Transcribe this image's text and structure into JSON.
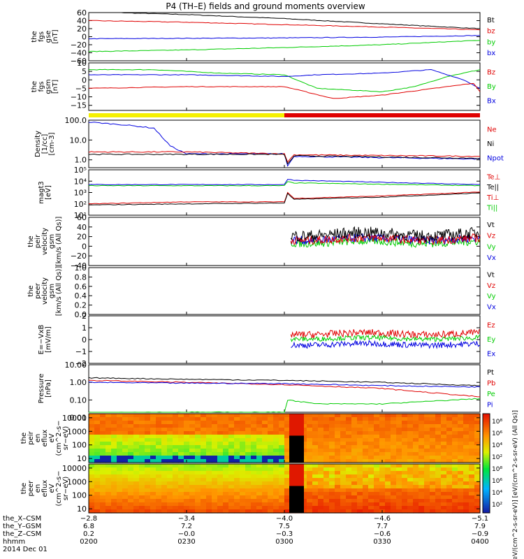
{
  "title": "P4 (TH–E) fields and ground moments overview",
  "colors": {
    "black": "#000000",
    "red": "#e00000",
    "green": "#00cc00",
    "blue": "#0000e0"
  },
  "time_axis": {
    "range": [
      0,
      120
    ],
    "ticks": [
      0,
      30,
      60,
      90,
      120
    ],
    "row_labels": [
      "the_X–CSM",
      "the_Y–GSM",
      "the_Z–CSM",
      "hhmm",
      "2014 Dec 01"
    ],
    "rows": [
      [
        "−2.8",
        "−3.4",
        "−4.0",
        "−4.6",
        "−5.1"
      ],
      [
        "6.8",
        "7.2",
        "7.5",
        "7.7",
        "7.9"
      ],
      [
        "0.2",
        "−0.0",
        "−0.3",
        "−0.6",
        "−0.9"
      ],
      [
        "0200",
        "0230",
        "0300",
        "0330",
        "0400"
      ]
    ]
  },
  "bar": {
    "yellow_until": 60
  },
  "panels": [
    {
      "id": "fgs-gse",
      "ylabel": [
        "the",
        "fgs",
        "gse",
        "[nT]"
      ],
      "scale": "lin",
      "ylim": [
        -60,
        60
      ],
      "ticks": [
        "60",
        "40",
        "20",
        "0",
        "−20",
        "−40",
        "−60"
      ],
      "tickvals": [
        60,
        40,
        20,
        0,
        -20,
        -40,
        -60
      ],
      "legend": [
        {
          "t": "Bt",
          "c": "black"
        },
        {
          "t": "bz",
          "c": "red"
        },
        {
          "t": "by",
          "c": "green"
        },
        {
          "t": "bx",
          "c": "blue"
        }
      ],
      "series": [
        {
          "c": "black",
          "pts": [
            [
              0,
              62
            ],
            [
              30,
              55
            ],
            [
              60,
              45
            ],
            [
              90,
              32
            ],
            [
              120,
              20
            ]
          ]
        },
        {
          "c": "red",
          "pts": [
            [
              0,
              40
            ],
            [
              30,
              36
            ],
            [
              60,
              30
            ],
            [
              90,
              24
            ],
            [
              120,
              17
            ]
          ]
        },
        {
          "c": "blue",
          "pts": [
            [
              0,
              -5
            ],
            [
              30,
              -4
            ],
            [
              60,
              -3
            ],
            [
              90,
              -1
            ],
            [
              120,
              3
            ]
          ]
        },
        {
          "c": "green",
          "pts": [
            [
              0,
              -37
            ],
            [
              30,
              -33
            ],
            [
              60,
              -27
            ],
            [
              90,
              -20
            ],
            [
              120,
              -9
            ]
          ]
        }
      ]
    },
    {
      "id": "fgs-gsm",
      "ylabel": [
        "the",
        "fgs",
        "gsm",
        "[nT]"
      ],
      "scale": "lin",
      "ylim": [
        -18,
        10
      ],
      "ticks": [
        "10",
        "5",
        "0",
        "−5",
        "−10",
        "−15"
      ],
      "tickvals": [
        10,
        5,
        0,
        -5,
        -10,
        -15
      ],
      "legend": [
        {
          "t": "Bz",
          "c": "red"
        },
        {
          "t": "By",
          "c": "green"
        },
        {
          "t": "Bx",
          "c": "blue"
        }
      ],
      "series": [
        {
          "c": "green",
          "pts": [
            [
              0,
              6
            ],
            [
              20,
              6
            ],
            [
              40,
              4
            ],
            [
              60,
              3
            ],
            [
              70,
              -5
            ],
            [
              80,
              -6
            ],
            [
              90,
              -7
            ],
            [
              100,
              -4
            ],
            [
              110,
              2
            ],
            [
              120,
              6
            ]
          ]
        },
        {
          "c": "blue",
          "pts": [
            [
              0,
              3
            ],
            [
              30,
              3
            ],
            [
              60,
              2
            ],
            [
              70,
              3
            ],
            [
              90,
              4
            ],
            [
              105,
              6
            ],
            [
              115,
              0
            ],
            [
              120,
              -5
            ]
          ]
        },
        {
          "c": "red",
          "pts": [
            [
              0,
              -5
            ],
            [
              30,
              -4
            ],
            [
              60,
              -4
            ],
            [
              75,
              -11
            ],
            [
              90,
              -9
            ],
            [
              110,
              -4
            ],
            [
              118,
              -2
            ],
            [
              120,
              -7
            ]
          ]
        }
      ]
    },
    {
      "id": "density",
      "ylabel": [
        "Density",
        "[1/cc]",
        "[cm-3]"
      ],
      "scale": "log",
      "ylim": [
        0.4,
        100
      ],
      "ticks": [
        "100.0",
        "10.0",
        "1.0"
      ],
      "tickvals": [
        100,
        10,
        1
      ],
      "legend": [
        {
          "t": "Ne",
          "c": "red"
        },
        {
          "t": "Ni",
          "c": "black"
        },
        {
          "t": "Npot",
          "c": "blue"
        }
      ],
      "series": [
        {
          "c": "blue",
          "pts": [
            [
              0,
              80
            ],
            [
              10,
              60
            ],
            [
              20,
              40
            ],
            [
              25,
              5
            ],
            [
              30,
              2
            ],
            [
              60,
              2
            ],
            [
              61,
              0.5
            ],
            [
              63,
              1.5
            ],
            [
              120,
              1.1
            ]
          ]
        },
        {
          "c": "red",
          "pts": [
            [
              0,
              2.5
            ],
            [
              30,
              2.5
            ],
            [
              60,
              2
            ],
            [
              61,
              0.8
            ],
            [
              63,
              1.8
            ],
            [
              120,
              1.5
            ]
          ]
        },
        {
          "c": "black",
          "pts": [
            [
              0,
              1.9
            ],
            [
              30,
              1.9
            ],
            [
              60,
              1.9
            ],
            [
              61,
              0.6
            ],
            [
              63,
              1.6
            ],
            [
              120,
              1.2
            ]
          ]
        }
      ]
    },
    {
      "id": "temperature",
      "ylabel": [
        "magt3",
        "[eV]"
      ],
      "scale": "log",
      "ylim": [
        10,
        100000
      ],
      "ticks": [
        "10⁵",
        "10⁴",
        "10³",
        "10²",
        "10¹"
      ],
      "tickvals": [
        100000,
        10000,
        1000,
        100,
        10
      ],
      "legend": [
        {
          "t": "Te⊥",
          "c": "red"
        },
        {
          "t": "Te||",
          "c": "black"
        },
        {
          "t": "Ti⊥",
          "c": "red"
        },
        {
          "t": "Ti||",
          "c": "green"
        }
      ],
      "series": [
        {
          "c": "blue",
          "pts": [
            [
              0,
              5000
            ],
            [
              60,
              5000
            ],
            [
              61,
              15000
            ],
            [
              63,
              12000
            ],
            [
              120,
              5000
            ]
          ]
        },
        {
          "c": "green",
          "pts": [
            [
              0,
              4000
            ],
            [
              60,
              4000
            ],
            [
              61,
              9000
            ],
            [
              63,
              7000
            ],
            [
              120,
              4000
            ]
          ]
        },
        {
          "c": "red",
          "pts": [
            [
              0,
              100
            ],
            [
              30,
              150
            ],
            [
              60,
              150
            ],
            [
              61,
              1000
            ],
            [
              63,
              300
            ],
            [
              90,
              500
            ],
            [
              120,
              1100
            ]
          ]
        },
        {
          "c": "black",
          "pts": [
            [
              0,
              80
            ],
            [
              30,
              100
            ],
            [
              60,
              120
            ],
            [
              61,
              800
            ],
            [
              63,
              250
            ],
            [
              90,
              400
            ],
            [
              120,
              900
            ]
          ]
        }
      ]
    },
    {
      "id": "peir-vel",
      "ylabel": [
        "the",
        "peir",
        "velocity",
        "gsm",
        "[km/s (All Qs)]"
      ],
      "scale": "lin",
      "ylim": [
        -40,
        60
      ],
      "ticks": [
        "60",
        "40",
        "20",
        "0",
        "−20",
        "−40"
      ],
      "tickvals": [
        60,
        40,
        20,
        0,
        -20,
        -40
      ],
      "legend": [
        {
          "t": "Vt",
          "c": "black"
        },
        {
          "t": "Vz",
          "c": "red"
        },
        {
          "t": "Vy",
          "c": "green"
        },
        {
          "t": "Vx",
          "c": "blue"
        }
      ],
      "noisy": [
        {
          "c": "green",
          "base": 8,
          "amp": 8
        },
        {
          "c": "blue",
          "base": 15,
          "amp": 9
        },
        {
          "c": "red",
          "base": 15,
          "amp": 9
        },
        {
          "c": "black",
          "base": 25,
          "amp": 12
        }
      ],
      "noisy_from": 62
    },
    {
      "id": "peer-vel",
      "ylabel": [
        "the",
        "peer",
        "velocity",
        "gsm",
        "[km/s (All Qs)]"
      ],
      "scale": "lin",
      "ylim": [
        0,
        1
      ],
      "ticks": [
        "1.0",
        "0.8",
        "0.6",
        "0.4",
        "0.2",
        "0.0"
      ],
      "tickvals": [
        1,
        0.8,
        0.6,
        0.4,
        0.2,
        0
      ],
      "legend": [
        {
          "t": "Vt",
          "c": "black"
        },
        {
          "t": "Vz",
          "c": "red"
        },
        {
          "t": "Vy",
          "c": "green"
        },
        {
          "t": "Vx",
          "c": "blue"
        }
      ]
    },
    {
      "id": "efield",
      "ylabel": [
        "E=−VxB",
        "[mV/m]"
      ],
      "scale": "lin",
      "ylim": [
        -2,
        2
      ],
      "ticks": [
        "2",
        "1",
        "0",
        "−1",
        "−2"
      ],
      "tickvals": [
        2,
        1,
        0,
        -1,
        -2
      ],
      "legend": [
        {
          "t": "Ez",
          "c": "red"
        },
        {
          "t": "Ey",
          "c": "green"
        },
        {
          "t": "Ex",
          "c": "blue"
        }
      ],
      "noisy": [
        {
          "c": "blue",
          "base": -0.4,
          "amp": 0.25
        },
        {
          "c": "green",
          "base": 0.1,
          "amp": 0.2
        },
        {
          "c": "red",
          "base": 0.5,
          "amp": 0.3
        }
      ],
      "noisy_from": 62
    },
    {
      "id": "pressure",
      "ylabel": [
        "Pressure",
        "[nPa]"
      ],
      "scale": "log",
      "ylim": [
        0.02,
        10
      ],
      "ticks": [
        "10.00",
        "1.00",
        "0.10",
        "0.01"
      ],
      "tickvals": [
        10,
        1,
        0.1,
        0.01
      ],
      "legend": [
        {
          "t": "Pt",
          "c": "black"
        },
        {
          "t": "Pb",
          "c": "red"
        },
        {
          "t": "Pe",
          "c": "green"
        },
        {
          "t": "Pi",
          "c": "blue"
        }
      ],
      "series": [
        {
          "c": "black",
          "pts": [
            [
              0,
              1.8
            ],
            [
              30,
              1.5
            ],
            [
              60,
              1.3
            ],
            [
              90,
              1.0
            ],
            [
              120,
              0.65
            ]
          ]
        },
        {
          "c": "red",
          "pts": [
            [
              0,
              1.3
            ],
            [
              30,
              1.0
            ],
            [
              60,
              0.75
            ],
            [
              90,
              0.45
            ],
            [
              120,
              0.15
            ]
          ]
        },
        {
          "c": "blue",
          "pts": [
            [
              0,
              1.0
            ],
            [
              30,
              0.9
            ],
            [
              60,
              0.85
            ],
            [
              90,
              0.65
            ],
            [
              120,
              0.55
            ]
          ]
        },
        {
          "c": "green",
          "pts": [
            [
              0,
              0.02
            ],
            [
              60,
              0.02
            ],
            [
              61,
              0.1
            ],
            [
              70,
              0.06
            ],
            [
              90,
              0.06
            ],
            [
              120,
              0.12
            ]
          ]
        }
      ]
    },
    {
      "id": "peir-en",
      "ylabel": [
        "the",
        "peir",
        "en",
        "eflux",
        "eV",
        "(cm^2-s−",
        "sr−eV)"
      ],
      "scale": "log",
      "ylim": [
        5,
        20000
      ],
      "ticks": [
        "10000",
        "1000",
        "100",
        "10"
      ],
      "tickvals": [
        10000,
        1000,
        100,
        10
      ],
      "spec": "ion"
    },
    {
      "id": "peer-en",
      "ylabel": [
        "the",
        "peer",
        "en",
        "eflux",
        "eV",
        "(cm^2-s−",
        "sr−eV)"
      ],
      "scale": "log",
      "ylim": [
        5,
        20000
      ],
      "ticks": [
        "10000",
        "1000",
        "100",
        "10"
      ],
      "tickvals": [
        10000,
        1000,
        100,
        10
      ],
      "spec": "electron"
    }
  ],
  "colorbar": {
    "ticks": [
      "10⁸",
      "10⁶",
      "10⁴",
      "10²",
      "10⁸",
      "10⁶",
      "10⁴",
      "10²"
    ],
    "label": "[eV/(cm^2-s-sr-eV)] [eV/(cm^2-s-sr-eV) (All Qs)]"
  }
}
